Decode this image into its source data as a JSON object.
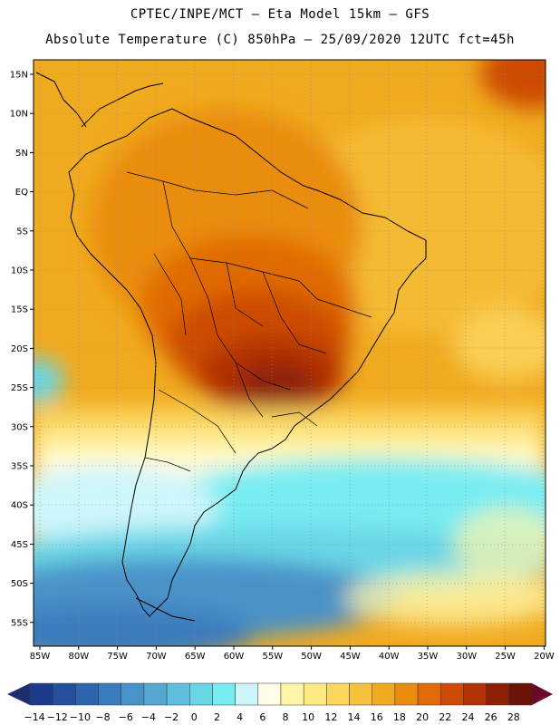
{
  "title_line1": "CPTEC/INPE/MCT  –  Eta Model 15km  –  GFS",
  "title_line2": "Absolute Temperature (C) 850hPa  –  25/09/2020 12UTC fct=45h",
  "map": {
    "lat_labels": [
      "15N",
      "10N",
      "5N",
      "EQ",
      "5S",
      "10S",
      "15S",
      "20S",
      "25S",
      "30S",
      "35S",
      "40S",
      "45S",
      "50S",
      "55S"
    ],
    "lon_labels": [
      "85W",
      "80W",
      "75W",
      "70W",
      "65W",
      "60W",
      "55W",
      "50W",
      "45W",
      "40W",
      "35W",
      "30W",
      "25W",
      "20W"
    ]
  },
  "colorbar": {
    "labels": [
      "-14",
      "-12",
      "-10",
      "-8",
      "-6",
      "-4",
      "-2",
      "0",
      "2",
      "4",
      "6",
      "8",
      "10",
      "12",
      "14",
      "16",
      "18",
      "20",
      "22",
      "24",
      "26",
      "28"
    ],
    "colors": [
      "#1e3a8a",
      "#24509c",
      "#2e66ae",
      "#3a7cbd",
      "#4892c8",
      "#56a8d2",
      "#5fbfdc",
      "#69d6e6",
      "#78ecf2",
      "#cdf6fb",
      "#fffbe6",
      "#fff5a8",
      "#feea82",
      "#fbd760",
      "#f6c23d",
      "#f0aa1f",
      "#ea8c0e",
      "#e06a06",
      "#cd4c05",
      "#b23306",
      "#8f2008",
      "#6b1209"
    ],
    "arrow_left_color": "#1e2f70",
    "arrow_right_color": "#6a0a28"
  },
  "colors": {
    "ocean_base": "#f0aa1f",
    "coastline": "#000000",
    "grid": "#8a8a8a"
  }
}
